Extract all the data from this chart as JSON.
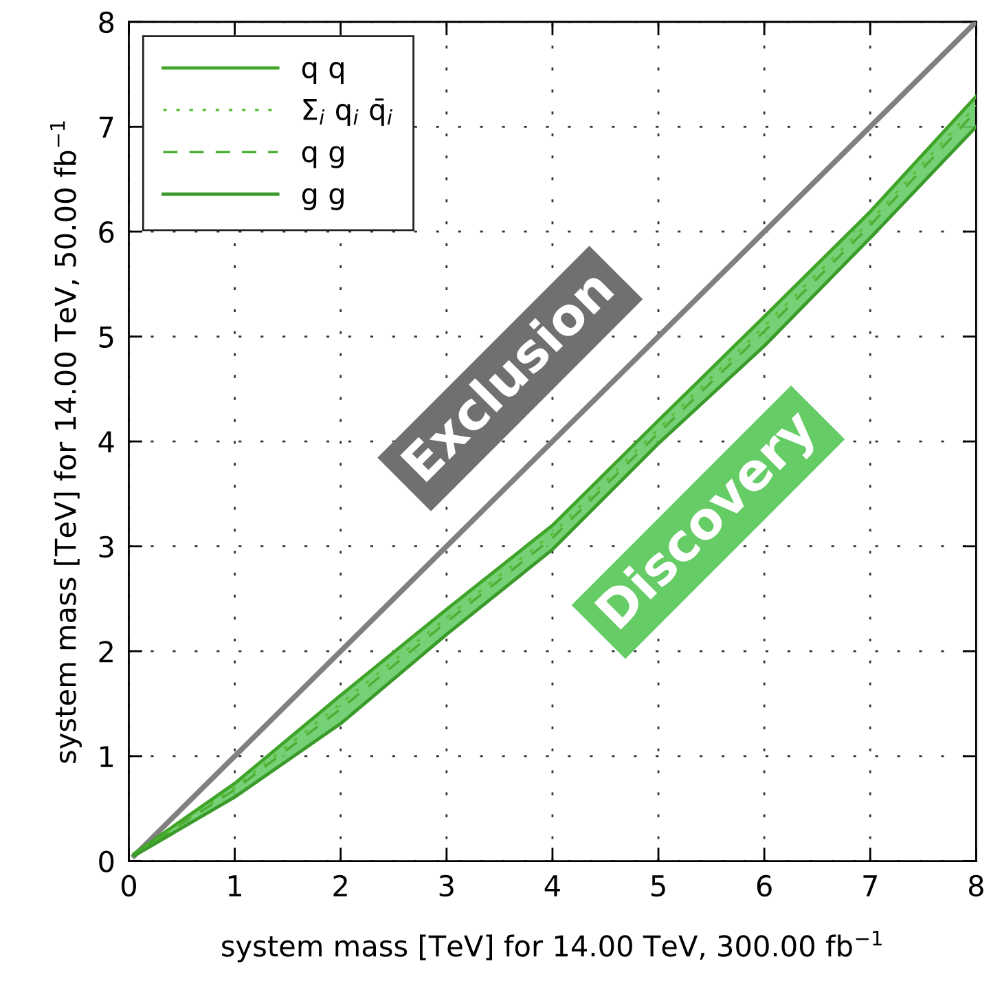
{
  "chart_data": {
    "type": "line",
    "xlabel": "system mass [TeV] for 14.00 TeV, 300.00 fb$^{−1}$",
    "ylabel": "system mass [TeV] for 14.00 TeV, 50.00 fb$^{−1}$",
    "x": [
      0.05,
      1,
      2,
      3,
      4,
      5,
      6,
      7,
      8
    ],
    "series": [
      {
        "color": "#808080",
        "x": [
          0.05,
          8
        ],
        "values": [
          0.05,
          8
        ]
      },
      {
        "name": "q q",
        "color": "#3fa428",
        "line_style": "solid",
        "values": [
          0.07,
          0.74,
          1.58,
          2.4,
          3.2,
          4.2,
          5.19,
          6.19,
          7.29
        ]
      },
      {
        "name": "Σ$_{i}$ q$_{i}$ q̄$_{i}$",
        "color": "#5cbf3a",
        "line_style": "dotted",
        "values": [
          0.06,
          0.7,
          1.5,
          2.32,
          3.12,
          4.12,
          5.1,
          6.1,
          7.2
        ]
      },
      {
        "name": "q g",
        "color": "#4caf34",
        "line_style": "dashed",
        "values": [
          0.06,
          0.68,
          1.45,
          2.28,
          3.08,
          4.08,
          5.05,
          6.06,
          7.15
        ],
        "lower": [
          0.05,
          0.61,
          1.31,
          2.16,
          2.97,
          3.98,
          4.91,
          5.94,
          7.0
        ],
        "upper": [
          0.07,
          0.74,
          1.58,
          2.4,
          3.2,
          4.2,
          5.19,
          6.19,
          7.29
        ]
      },
      {
        "name": "g g",
        "color": "#3a9a2a",
        "line_style": "solid",
        "values": [
          0.05,
          0.61,
          1.31,
          2.16,
          2.97,
          3.98,
          4.91,
          5.94,
          7.0
        ]
      }
    ],
    "annotations": [
      "Exclusion",
      "Discovery"
    ],
    "xlim": [
      0,
      8
    ],
    "ylim": [
      0,
      8
    ],
    "xticks": [
      0,
      1,
      2,
      3,
      4,
      5,
      6,
      7,
      8
    ],
    "yticks": [
      0,
      1,
      2,
      3,
      4,
      5,
      6,
      7,
      8
    ],
    "grid": true,
    "legend": "top left"
  }
}
